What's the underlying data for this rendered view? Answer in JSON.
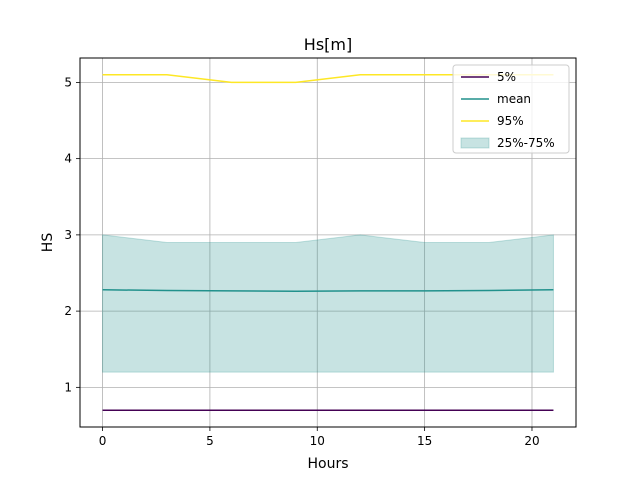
{
  "chart_data": {
    "type": "line",
    "title": "Hs[m]",
    "xlabel": "Hours",
    "ylabel": "HS",
    "xlim": [
      -1.05,
      22.05
    ],
    "ylim": [
      0.48,
      5.32
    ],
    "xticks": [
      0,
      5,
      10,
      15,
      20
    ],
    "yticks": [
      1,
      2,
      3,
      4,
      5
    ],
    "grid": true,
    "legend_position": "top-right",
    "x": [
      0,
      3,
      6,
      9,
      12,
      15,
      18,
      21
    ],
    "series": [
      {
        "name": "5%",
        "color": "#440154",
        "values": [
          0.7,
          0.7,
          0.7,
          0.7,
          0.7,
          0.7,
          0.7,
          0.7
        ]
      },
      {
        "name": "mean",
        "color": "#21918c",
        "values": [
          2.28,
          2.27,
          2.265,
          2.26,
          2.265,
          2.265,
          2.27,
          2.28
        ]
      },
      {
        "name": "95%",
        "color": "#fde725",
        "values": [
          5.1,
          5.1,
          5.0,
          5.0,
          5.1,
          5.1,
          5.1,
          5.1
        ]
      }
    ],
    "band": {
      "name": "25%-75%",
      "color": "#21918c",
      "lower": [
        1.2,
        1.2,
        1.2,
        1.2,
        1.2,
        1.2,
        1.2,
        1.2
      ],
      "upper": [
        3.0,
        2.9,
        2.9,
        2.9,
        3.0,
        2.9,
        2.9,
        3.0
      ]
    }
  }
}
